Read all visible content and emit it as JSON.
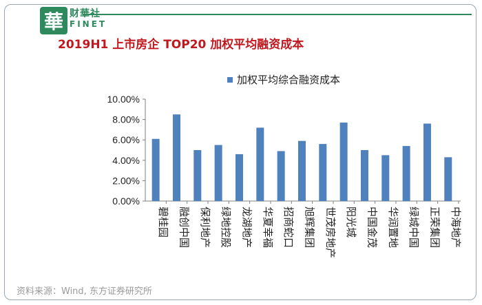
{
  "brand": {
    "logo_char": "華",
    "name_cn": "财華社",
    "name_en": "FINET"
  },
  "title": "2019H1 上市房企 TOP20 加权平均融资成本",
  "source": "资料来源：Wind, 东方证券研究所",
  "colors": {
    "bar": "#4f81bd",
    "title": "#c0181e",
    "brand": "#2e8a5c"
  },
  "chart_data": {
    "type": "bar",
    "title": "2019H1 上市房企 TOP20 加权平均融资成本",
    "xlabel": "",
    "ylabel": "",
    "ylim": [
      0,
      10
    ],
    "yticks": [
      "0.00%",
      "2.00%",
      "4.00%",
      "6.00%",
      "8.00%",
      "10.00%"
    ],
    "legend": {
      "position": "top",
      "label": "加权平均综合融资成本"
    },
    "grid": false,
    "categories": [
      "碧桂园",
      "融创中国",
      "保利地产",
      "绿地控股",
      "龙湖地产",
      "华夏幸福",
      "招商蛇口",
      "旭辉集团",
      "世茂房地产",
      "阳光城",
      "中国金茂",
      "华润置地",
      "绿城中国",
      "正荣集团",
      "中海地产"
    ],
    "series": [
      {
        "name": "加权平均综合融资成本",
        "values": [
          6.1,
          8.5,
          5.0,
          5.5,
          4.6,
          7.2,
          4.9,
          5.9,
          5.6,
          7.7,
          5.0,
          4.5,
          5.4,
          7.6,
          4.3
        ]
      }
    ]
  }
}
